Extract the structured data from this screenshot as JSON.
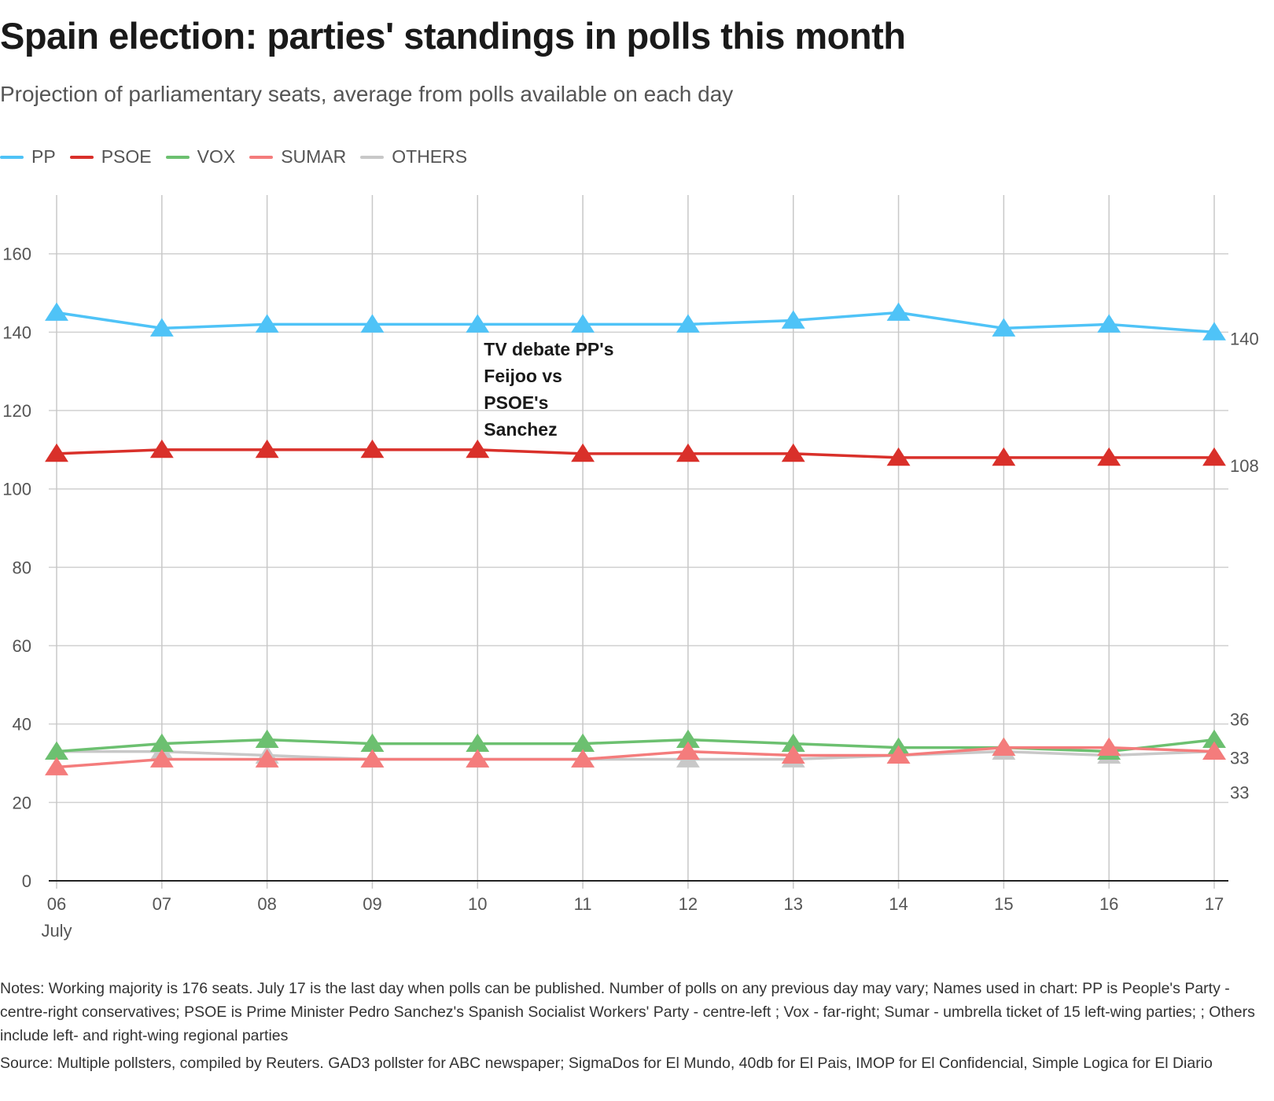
{
  "header": {
    "title": "Spain election: parties' standings in polls this month",
    "subtitle": "Projection of parliamentary seats, average from polls available on each day"
  },
  "legend": [
    {
      "label": "PP",
      "color": "#4fc3f7"
    },
    {
      "label": "PSOE",
      "color": "#d9302a"
    },
    {
      "label": "VOX",
      "color": "#6cc070"
    },
    {
      "label": "SUMAR",
      "color": "#f47c7c"
    },
    {
      "label": "OTHERS",
      "color": "#c8c8c8"
    }
  ],
  "chart_data": {
    "type": "line",
    "title": "Spain election: parties' standings in polls this month",
    "subtitle": "Projection of parliamentary seats, average from polls available on each day",
    "categories": [
      "06",
      "07",
      "08",
      "09",
      "10",
      "11",
      "12",
      "13",
      "14",
      "15",
      "16",
      "17"
    ],
    "x_sublabel": "July",
    "ylim": [
      0,
      175
    ],
    "yticks": [
      0,
      20,
      40,
      60,
      80,
      100,
      120,
      140,
      160
    ],
    "xlabel": "",
    "ylabel": "",
    "grid": true,
    "legend_position": "top-left",
    "series": [
      {
        "name": "OTHERS",
        "color": "#c8c8c8",
        "values": [
          33,
          33,
          32,
          31,
          31,
          31,
          31,
          31,
          32,
          33,
          32,
          33
        ],
        "end_label": "33"
      },
      {
        "name": "VOX",
        "color": "#6cc070",
        "values": [
          33,
          35,
          36,
          35,
          35,
          35,
          36,
          35,
          34,
          34,
          33,
          36
        ],
        "end_label": "36"
      },
      {
        "name": "SUMAR",
        "color": "#f47c7c",
        "values": [
          29,
          31,
          31,
          31,
          31,
          31,
          33,
          32,
          32,
          34,
          34,
          33
        ],
        "end_label": "33"
      },
      {
        "name": "PSOE",
        "color": "#d9302a",
        "values": [
          109,
          110,
          110,
          110,
          110,
          109,
          109,
          109,
          108,
          108,
          108,
          108
        ],
        "end_label": "108"
      },
      {
        "name": "PP",
        "color": "#4fc3f7",
        "values": [
          145,
          141,
          142,
          142,
          142,
          142,
          142,
          143,
          145,
          141,
          142,
          140
        ],
        "end_label": "140"
      }
    ],
    "annotation": {
      "lines": [
        "TV debate PP's",
        "Feijoo vs",
        "PSOE's",
        "Sanchez"
      ],
      "at_category": "10"
    }
  },
  "footer": {
    "notes": "Notes: Working majority is 176 seats. July 17 is the last day when polls can be published. Number of polls on any previous day may vary; Names used in chart: PP is People's Party - centre-right conservatives; PSOE is Prime Minister Pedro Sanchez's Spanish Socialist Workers' Party - centre-left ; Vox - far-right; Sumar - umbrella ticket of 15 left-wing parties; ; Others include left- and right-wing regional parties",
    "source": "Source: Multiple pollsters, compiled by Reuters. GAD3 pollster for ABC newspaper; SigmaDos for El Mundo, 40db for El Pais, IMOP for El Confidencial, Simple Logica for El Diario"
  }
}
